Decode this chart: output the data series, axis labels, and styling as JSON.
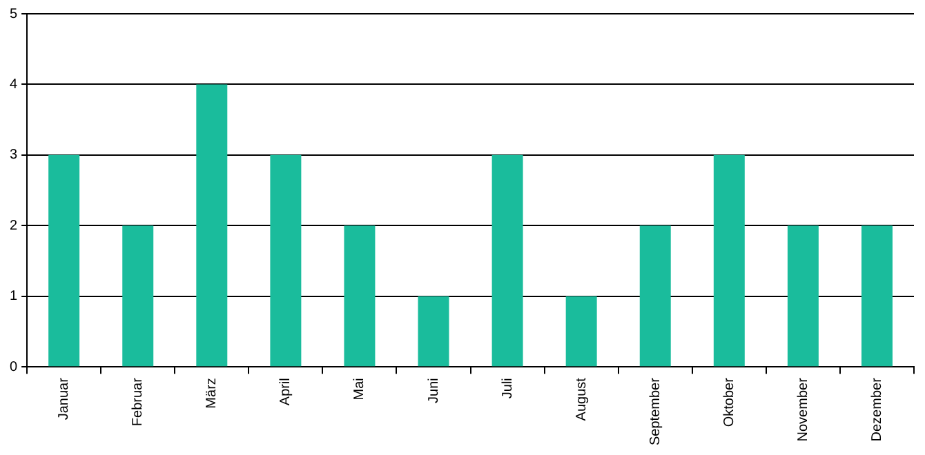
{
  "chart_data": {
    "type": "bar",
    "categories": [
      "Januar",
      "Februar",
      "März",
      "April",
      "Mai",
      "Juni",
      "Juli",
      "August",
      "September",
      "Oktober",
      "November",
      "Dezember"
    ],
    "values": [
      3,
      2,
      4,
      3,
      2,
      1,
      3,
      1,
      2,
      3,
      2,
      2
    ],
    "color": "#1abc9c",
    "ylim": [
      0,
      5
    ],
    "yticks": [
      0,
      1,
      2,
      3,
      4,
      5
    ],
    "grid": "y"
  }
}
